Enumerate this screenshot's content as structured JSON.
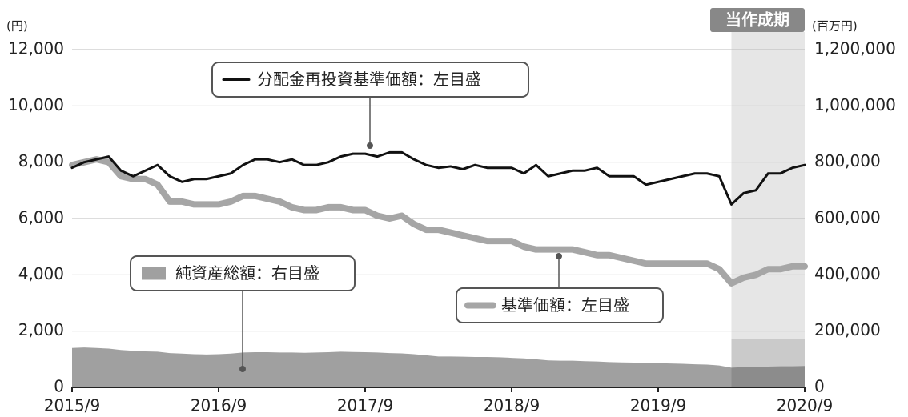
{
  "chart_data": {
    "type": "line",
    "y_label": "(円)",
    "y2_label": "(百万円)",
    "period_label": "当作成期",
    "categories": [
      "2015/9",
      null,
      null,
      null,
      null,
      null,
      null,
      null,
      null,
      null,
      null,
      null,
      "2016/9",
      null,
      null,
      null,
      null,
      null,
      null,
      null,
      null,
      null,
      null,
      null,
      "2017/9",
      null,
      null,
      null,
      null,
      null,
      null,
      null,
      null,
      null,
      null,
      null,
      "2018/9",
      null,
      null,
      null,
      null,
      null,
      null,
      null,
      null,
      null,
      null,
      null,
      "2019/9",
      null,
      null,
      null,
      null,
      null,
      null,
      null,
      null,
      null,
      null,
      null,
      "2020/9"
    ],
    "series": [
      {
        "name": "純資産総額：右目盛",
        "color": "#a0a0a0",
        "kind": "area",
        "axis": "y2",
        "values": [
          140000,
          142000,
          140000,
          138000,
          133000,
          130000,
          128000,
          127000,
          122000,
          120000,
          118000,
          117000,
          118000,
          120000,
          124000,
          125000,
          125000,
          124000,
          124000,
          123000,
          124000,
          125000,
          127000,
          126000,
          125000,
          124000,
          122000,
          121000,
          118000,
          114000,
          110000,
          110000,
          109000,
          108000,
          108000,
          107000,
          105000,
          103000,
          100000,
          96000,
          95000,
          95000,
          93000,
          92000,
          90000,
          89000,
          88000,
          86000,
          86000,
          85000,
          84000,
          82000,
          81000,
          78000,
          70000,
          72000,
          73000,
          74000,
          75000,
          75000,
          76000
        ]
      },
      {
        "name": "基準価額：左目盛",
        "color": "#a6a6a6",
        "kind": "line",
        "width": 8,
        "values": [
          7900,
          8000,
          8100,
          8000,
          7500,
          7400,
          7400,
          7200,
          6600,
          6600,
          6500,
          6500,
          6500,
          6600,
          6800,
          6800,
          6700,
          6600,
          6400,
          6300,
          6300,
          6400,
          6400,
          6300,
          6300,
          6100,
          6000,
          6100,
          5800,
          5600,
          5600,
          5500,
          5400,
          5300,
          5200,
          5200,
          5200,
          5000,
          4900,
          4900,
          4900,
          4900,
          4800,
          4700,
          4700,
          4600,
          4500,
          4400,
          4400,
          4400,
          4400,
          4400,
          4400,
          4200,
          3700,
          3900,
          4000,
          4200,
          4200,
          4300,
          4300
        ]
      },
      {
        "name": "分配金再投資基準価額：左目盛",
        "color": "#111111",
        "kind": "line",
        "width": 3,
        "values": [
          7800,
          8000,
          8100,
          8200,
          7700,
          7500,
          7700,
          7900,
          7500,
          7300,
          7400,
          7400,
          7500,
          7600,
          7900,
          8100,
          8100,
          8000,
          8100,
          7900,
          7900,
          8000,
          8200,
          8300,
          8300,
          8200,
          8350,
          8350,
          8100,
          7900,
          7800,
          7850,
          7750,
          7900,
          7800,
          7800,
          7800,
          7600,
          7900,
          7500,
          7600,
          7700,
          7700,
          7800,
          7500,
          7500,
          7500,
          7200,
          7300,
          7400,
          7500,
          7600,
          7600,
          7500,
          6500,
          6900,
          7000,
          7600,
          7600,
          7800,
          7900
        ]
      }
    ],
    "ylim": [
      0,
      12000
    ],
    "yticks": [
      0,
      {
        "value": 2000,
        "label": "2,000"
      },
      {
        "value": 4000,
        "label": "4,000"
      },
      {
        "value": 6000,
        "label": "6,000"
      },
      {
        "value": 8000,
        "label": "8,000"
      },
      {
        "value": 10000,
        "label": "10,000"
      },
      {
        "value": 12000,
        "label": "12,000"
      }
    ],
    "y2lim": [
      0,
      1200000
    ],
    "y2ticks": [
      0,
      {
        "value": 200000,
        "label": "200,000"
      },
      {
        "value": 400000,
        "label": "400,000"
      },
      {
        "value": 600000,
        "label": "600,000"
      },
      {
        "value": 800000,
        "label": "800,000"
      },
      {
        "value": 1000000,
        "label": "1,000,000"
      },
      {
        "value": 1200000,
        "label": "1,200,000"
      }
    ],
    "grid": true
  }
}
